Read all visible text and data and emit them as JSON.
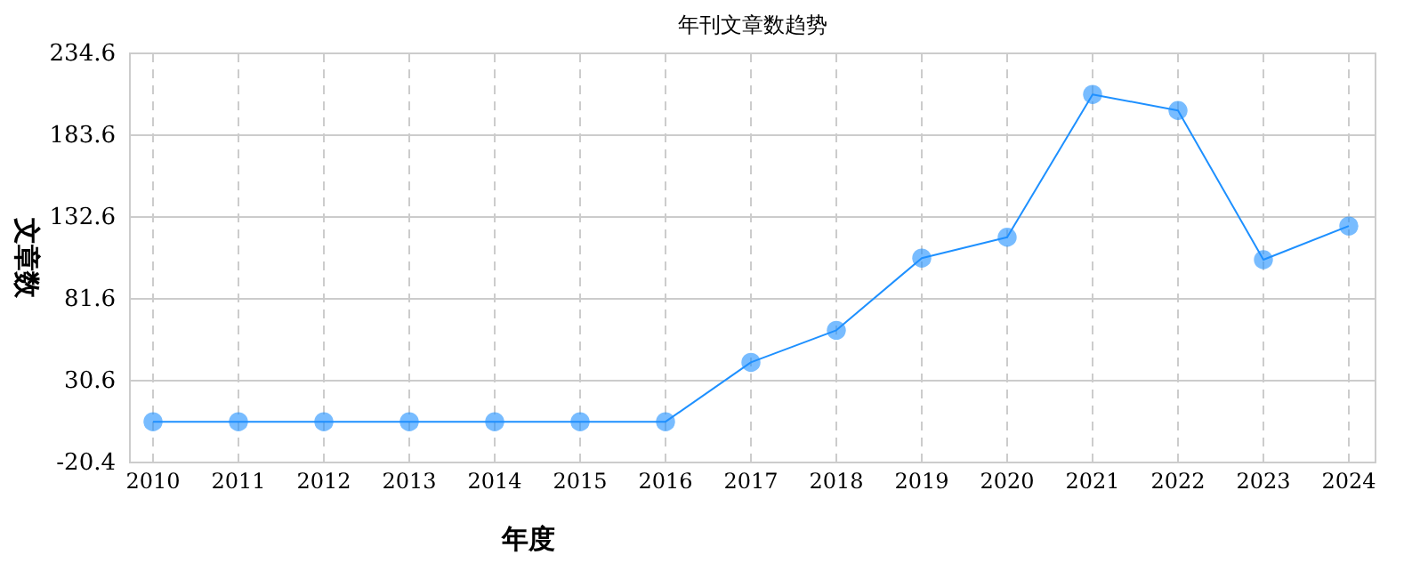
{
  "chart_data": {
    "type": "line",
    "title": "年刊文章数趋势",
    "xlabel": "年度",
    "ylabel": "文章数",
    "categories": [
      "2010",
      "2011",
      "2012",
      "2013",
      "2014",
      "2015",
      "2016",
      "2017",
      "2018",
      "2019",
      "2020",
      "2021",
      "2022",
      "2023",
      "2024"
    ],
    "series": [
      {
        "color": "#1e90ff",
        "values": [
          5,
          5,
          5,
          5,
          5,
          5,
          5,
          42,
          62,
          107,
          120,
          209,
          199,
          106,
          127
        ]
      }
    ],
    "ylim": [
      -20.4,
      234.6
    ],
    "yticks": [
      -20.4,
      30.6,
      81.6,
      132.6,
      183.6,
      234.6
    ],
    "grid": true,
    "marker": "circle",
    "line_style": "solid"
  }
}
